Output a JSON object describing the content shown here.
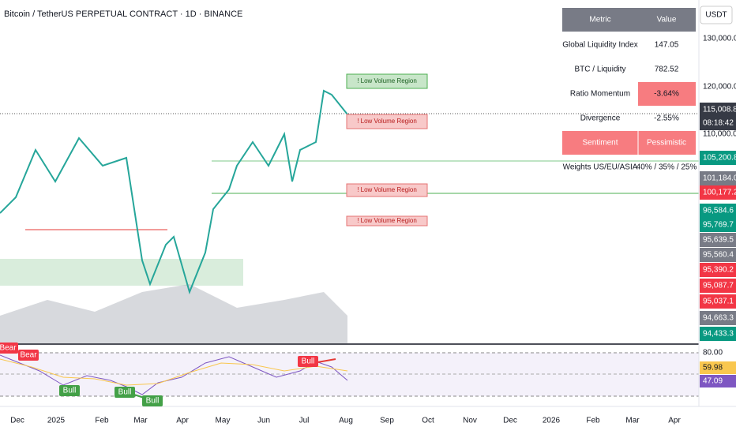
{
  "header": {
    "title": "Bitcoin / TetherUS PERPETUAL CONTRACT · 1D · BINANCE",
    "currency": "USDT"
  },
  "price_axis": [
    "130,000.0",
    "120,000.0",
    "115,008.8",
    "08:18:42",
    "110,000.0",
    "105,200.8",
    "101,184.0",
    "100,177.2",
    "96,584.6",
    "95,769.7",
    "95,639.5",
    "95,560.4",
    "95,390.2",
    "95,087.7",
    "95,037.1",
    "94,663.3",
    "94,433.3"
  ],
  "table": {
    "header": [
      "Metric",
      "Value"
    ],
    "rows": [
      [
        "Global Liquidity Index",
        "147.05"
      ],
      [
        "BTC / Liquidity",
        "782.52"
      ],
      [
        "Ratio Momentum",
        "-3.64%"
      ],
      [
        "Divergence",
        "-2.55%"
      ],
      [
        "Sentiment",
        "Pessimistic"
      ],
      [
        "Weights US/EU/ASIA",
        "40% / 35% / 25%"
      ]
    ]
  },
  "annotations": [
    "! Low Volume Region",
    "! Low Volume Region",
    "! Low Volume Region",
    "! Low Volume Region"
  ],
  "rsi": {
    "signals": [
      "Bear",
      "Bear",
      "Bull",
      "Bull",
      "Bull",
      "Bull"
    ],
    "axis": [
      "80.00",
      "59.98",
      "47.09"
    ]
  },
  "time_axis": [
    "Dec",
    "2025",
    "Feb",
    "Mar",
    "Apr",
    "May",
    "Jun",
    "Jul",
    "Aug",
    "Sep",
    "Oct",
    "Nov",
    "Dec",
    "2026",
    "Feb",
    "Mar",
    "Apr"
  ]
}
